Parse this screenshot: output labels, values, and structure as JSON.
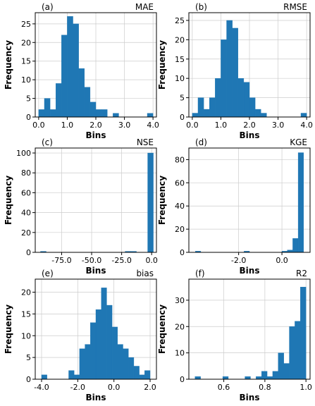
{
  "chart_data": [
    {
      "type": "bar",
      "panel_label": "(a)",
      "title": "MAE",
      "xlabel": "Bins",
      "ylabel": "Frequency",
      "xlim": [
        -0.12,
        4.12
      ],
      "ylim": [
        0,
        28
      ],
      "xticks": [
        0,
        1,
        2,
        3,
        4
      ],
      "xtick_labels": [
        "0.0",
        "1.0",
        "2.0",
        "3.0",
        "4.0"
      ],
      "yticks": [
        0,
        5,
        10,
        15,
        20,
        25
      ],
      "ytick_labels": [
        "0",
        "5",
        "10",
        "15",
        "20",
        "25"
      ],
      "grid": true,
      "bin_edges": [
        0.0,
        0.2,
        0.4,
        0.6,
        0.8,
        1.0,
        1.2,
        1.4,
        1.6,
        1.8,
        2.0,
        2.2,
        2.4,
        2.6,
        2.8,
        3.0,
        3.2,
        3.4,
        3.6,
        3.8,
        4.0
      ],
      "counts": [
        2,
        5,
        2,
        9,
        22,
        27,
        25,
        13,
        8,
        4,
        2,
        2,
        0,
        1,
        0,
        0,
        0,
        0,
        0,
        1
      ]
    },
    {
      "type": "bar",
      "panel_label": "(b)",
      "title": "RMSE",
      "xlabel": "Bins",
      "ylabel": "Frequency",
      "xlim": [
        -0.12,
        4.12
      ],
      "ylim": [
        0,
        27
      ],
      "xticks": [
        0,
        1,
        2,
        3,
        4
      ],
      "xtick_labels": [
        "0.0",
        "1.0",
        "2.0",
        "3.0",
        "4.0"
      ],
      "yticks": [
        0,
        5,
        10,
        15,
        20,
        25
      ],
      "ytick_labels": [
        "0",
        "5",
        "10",
        "15",
        "20",
        "25"
      ],
      "grid": true,
      "bin_edges": [
        0.0,
        0.2,
        0.4,
        0.6,
        0.8,
        1.0,
        1.2,
        1.4,
        1.6,
        1.8,
        2.0,
        2.2,
        2.4,
        2.6,
        2.8,
        3.0,
        3.2,
        3.4,
        3.6,
        3.8,
        4.0
      ],
      "counts": [
        1,
        5,
        2,
        5,
        10,
        20,
        25,
        23,
        10,
        9,
        5,
        2,
        1,
        0,
        0,
        0,
        0,
        0,
        0,
        1
      ]
    },
    {
      "type": "bar",
      "panel_label": "(c)",
      "title": "NSE",
      "xlabel": "Bins",
      "ylabel": "Frequency",
      "xlim": [
        -97,
        4
      ],
      "ylim": [
        0,
        105
      ],
      "xticks": [
        -75,
        -50,
        -25,
        0
      ],
      "xtick_labels": [
        "-75.0",
        "-50.0",
        "-25.0",
        "0.0"
      ],
      "yticks": [
        0,
        20,
        40,
        60,
        80,
        100
      ],
      "ytick_labels": [
        "0",
        "20",
        "40",
        "60",
        "80",
        "100"
      ],
      "grid": true,
      "bin_edges": [
        -92.6,
        -87.9,
        -83.2,
        -78.5,
        -73.8,
        -69.1,
        -64.4,
        -59.7,
        -55.0,
        -50.3,
        -45.6,
        -40.9,
        -36.2,
        -31.5,
        -26.8,
        -22.1,
        -17.4,
        -12.7,
        -8.0,
        -3.3,
        1.4
      ],
      "counts": [
        1,
        0,
        0,
        0,
        0,
        0,
        0,
        0,
        0,
        0,
        0,
        0,
        0,
        0,
        0,
        1,
        1,
        0,
        0,
        100
      ]
    },
    {
      "type": "bar",
      "panel_label": "(d)",
      "title": "KGE",
      "xlabel": "Bins",
      "ylabel": "Frequency",
      "xlim": [
        -4.3,
        1.3
      ],
      "ylim": [
        0,
        90
      ],
      "xticks": [
        -2,
        0
      ],
      "xtick_labels": [
        "-2.0",
        "0.0"
      ],
      "yticks": [
        0,
        20,
        40,
        60,
        80
      ],
      "ytick_labels": [
        "0",
        "20",
        "40",
        "60",
        "80"
      ],
      "grid": true,
      "bin_edges": [
        -4.0,
        -3.75,
        -3.5,
        -3.25,
        -3.0,
        -2.75,
        -2.5,
        -2.25,
        -2.0,
        -1.75,
        -1.5,
        -1.25,
        -1.0,
        -0.75,
        -0.5,
        -0.25,
        0.0,
        0.25,
        0.5,
        0.75,
        1.0
      ],
      "counts": [
        1,
        0,
        0,
        0,
        0,
        0,
        0,
        0,
        0,
        1,
        0,
        0,
        0,
        0,
        0,
        0,
        1,
        2,
        12,
        86
      ]
    },
    {
      "type": "bar",
      "panel_label": "(e)",
      "title": "bias",
      "xlabel": "Bins",
      "ylabel": "Frequency",
      "xlim": [
        -4.35,
        2.35
      ],
      "ylim": [
        0,
        23
      ],
      "xticks": [
        -4,
        -2,
        0,
        2
      ],
      "xtick_labels": [
        "-4.0",
        "-2.0",
        "0.0",
        "2.0"
      ],
      "yticks": [
        0,
        5,
        10,
        15,
        20
      ],
      "ytick_labels": [
        "0",
        "5",
        "10",
        "15",
        "20"
      ],
      "grid": true,
      "bin_edges": [
        -4.0,
        -3.7,
        -3.4,
        -3.1,
        -2.8,
        -2.5,
        -2.2,
        -1.9,
        -1.6,
        -1.3,
        -1.0,
        -0.7,
        -0.4,
        -0.1,
        0.2,
        0.5,
        0.8,
        1.1,
        1.4,
        1.7,
        2.0
      ],
      "counts": [
        1,
        0,
        0,
        0,
        0,
        2,
        1,
        7,
        8,
        13,
        16,
        21,
        17,
        12,
        8,
        7,
        5,
        3,
        1,
        2
      ]
    },
    {
      "type": "bar",
      "panel_label": "(f)",
      "title": "R2",
      "xlabel": "Bins",
      "ylabel": "Frequency",
      "xlim": [
        0.43,
        1.02
      ],
      "ylim": [
        0,
        38
      ],
      "xticks": [
        0.6,
        0.8,
        1.0
      ],
      "xtick_labels": [
        "0.6",
        "0.8",
        "1.0"
      ],
      "yticks": [
        0,
        10,
        20,
        30
      ],
      "ytick_labels": [
        "0",
        "10",
        "20",
        "30"
      ],
      "grid": true,
      "bin_edges": [
        0.46,
        0.487,
        0.514,
        0.541,
        0.568,
        0.595,
        0.622,
        0.649,
        0.676,
        0.703,
        0.73,
        0.757,
        0.784,
        0.811,
        0.838,
        0.865,
        0.892,
        0.919,
        0.946,
        0.973,
        1.0
      ],
      "counts": [
        1,
        0,
        0,
        0,
        0,
        1,
        0,
        0,
        0,
        1,
        0,
        1,
        3,
        1,
        3,
        10,
        6,
        20,
        22,
        35
      ]
    }
  ]
}
